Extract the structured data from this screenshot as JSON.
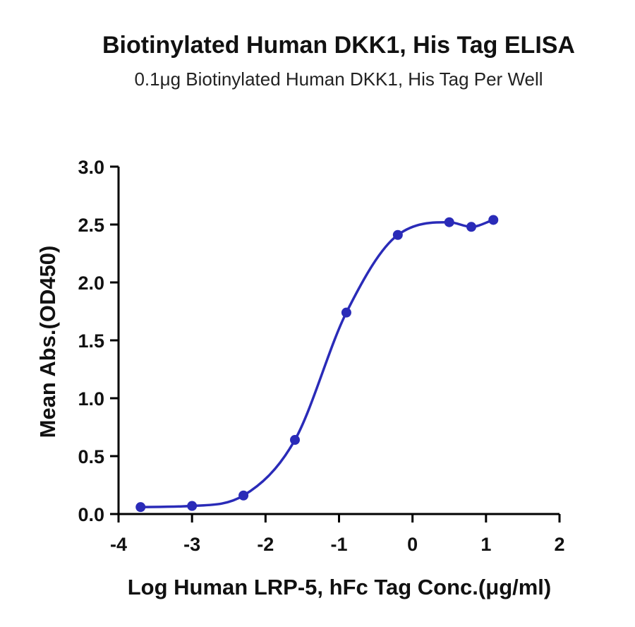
{
  "chart_data": {
    "type": "scatter",
    "title": "Biotinylated Human DKK1, His Tag ELISA",
    "subtitle": "0.1μg Biotinylated Human DKK1, His Tag Per Well",
    "xlabel": "Log Human LRP-5, hFc Tag Conc.(μg/ml)",
    "ylabel": "Mean Abs.(OD450)",
    "xlim": [
      -4,
      2
    ],
    "ylim": [
      0.0,
      3.0
    ],
    "x_ticks": [
      "-4",
      "-3",
      "-2",
      "-1",
      "0",
      "1",
      "2"
    ],
    "y_ticks": [
      "0.0",
      "0.5",
      "1.0",
      "1.5",
      "2.0",
      "2.5",
      "3.0"
    ],
    "x": [
      -3.7,
      -3.0,
      -2.3,
      -1.6,
      -0.9,
      -0.2,
      0.5,
      0.8,
      1.1
    ],
    "y": [
      0.06,
      0.07,
      0.16,
      0.64,
      1.74,
      2.41,
      2.52,
      2.48,
      2.54
    ],
    "series_color": "#2a2bb8",
    "grid": false
  }
}
